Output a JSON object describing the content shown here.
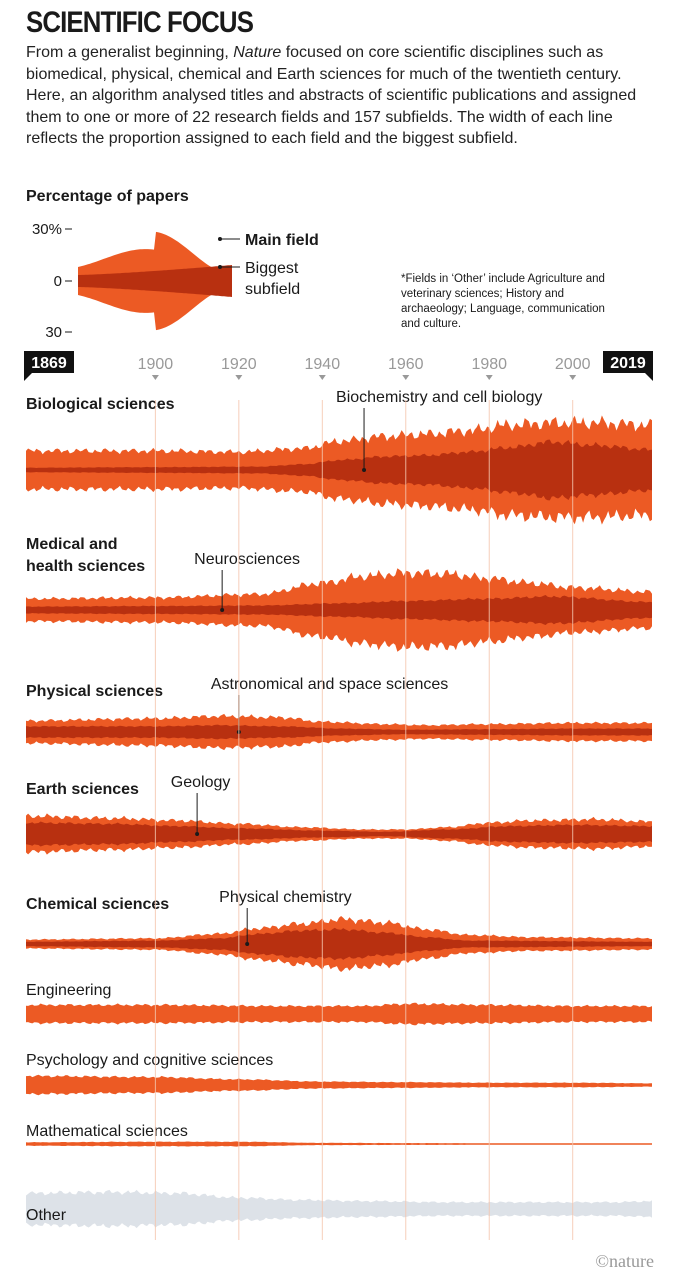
{
  "header": {
    "title": "SCIENTIFIC FOCUS",
    "intro_before": "From a generalist beginning, ",
    "intro_em": "Nature",
    "intro_after": " focused on core scientific disciplines such as biomedical, physical, chemical and Earth sciences for much of the twentieth century. Here, an algorithm analysed titles and abstracts of scientific publications and assigned them to one or more of 22 research fields and 157 subfields. The width of each line reflects the proportion assigned to each field and the biggest subfield."
  },
  "credit": "©nature",
  "colors": {
    "main_field": "#ec5a24",
    "subfield": "#b83010",
    "other": "#dde2e8",
    "gridline": "#f5c6ae",
    "text": "#1a1a1a",
    "tick": "#999999",
    "badge": "#111111"
  },
  "chart_data": {
    "type": "area",
    "subtype": "streamgraph",
    "legend": {
      "title": "Percentage of papers",
      "scale_ticks": [
        "30%",
        "0",
        "30"
      ],
      "main_label": "Main field",
      "sub_label_lines": [
        "Biggest",
        "subfield"
      ],
      "note_lines": [
        "*Fields in ‘Other’ include Agriculture and",
        "veterinary sciences; History and",
        "archaeology; Language, communication",
        "and culture."
      ]
    },
    "x_axis": {
      "start_label": "1869",
      "end_label": "2019",
      "range": [
        1869,
        2019
      ],
      "ticks": [
        1900,
        1920,
        1940,
        1960,
        1980,
        2000
      ],
      "tick_labels": [
        "1900",
        "1920",
        "1940",
        "1960",
        "1980",
        "2000"
      ]
    },
    "series_unit": "percentage of papers (full band width)",
    "series": [
      {
        "name": "Biological sciences",
        "bold": true,
        "subfield": "Biochemistry and cell biology",
        "callout_year": 1950,
        "anchors": [
          [
            1869,
            17
          ],
          [
            1900,
            17
          ],
          [
            1920,
            16
          ],
          [
            1935,
            19
          ],
          [
            1945,
            26
          ],
          [
            1955,
            30
          ],
          [
            1965,
            32
          ],
          [
            1975,
            35
          ],
          [
            1985,
            40
          ],
          [
            1995,
            42
          ],
          [
            2005,
            42
          ],
          [
            2019,
            40
          ]
        ],
        "sub_anchors": [
          [
            1869,
            2
          ],
          [
            1900,
            2.5
          ],
          [
            1925,
            3
          ],
          [
            1935,
            5
          ],
          [
            1945,
            9
          ],
          [
            1955,
            12
          ],
          [
            1965,
            13
          ],
          [
            1975,
            16
          ],
          [
            1985,
            20
          ],
          [
            1995,
            25
          ],
          [
            2005,
            22
          ],
          [
            2019,
            18
          ]
        ]
      },
      {
        "name": "Medical and health sciences",
        "name_lines": [
          "Medical and",
          "health sciences"
        ],
        "bold": true,
        "subfield": "Neurosciences",
        "callout_year": 1916,
        "anchors": [
          [
            1869,
            10
          ],
          [
            1900,
            11
          ],
          [
            1925,
            14
          ],
          [
            1940,
            24
          ],
          [
            1950,
            30
          ],
          [
            1960,
            33
          ],
          [
            1970,
            32
          ],
          [
            1980,
            28
          ],
          [
            1990,
            24
          ],
          [
            2000,
            20
          ],
          [
            2019,
            16
          ]
        ],
        "sub_anchors": [
          [
            1869,
            3
          ],
          [
            1900,
            3.5
          ],
          [
            1925,
            4
          ],
          [
            1945,
            6
          ],
          [
            1960,
            8
          ],
          [
            1980,
            10
          ],
          [
            1995,
            12
          ],
          [
            2019,
            7
          ]
        ]
      },
      {
        "name": "Physical sciences",
        "bold": true,
        "subfield": "Astronomical and space sciences",
        "callout_year": 1920,
        "anchors": [
          [
            1869,
            10
          ],
          [
            1900,
            12
          ],
          [
            1915,
            14
          ],
          [
            1930,
            13
          ],
          [
            1940,
            9
          ],
          [
            1955,
            7
          ],
          [
            1965,
            6
          ],
          [
            1980,
            7
          ],
          [
            2000,
            8
          ],
          [
            2019,
            8
          ]
        ],
        "sub_anchors": [
          [
            1869,
            5
          ],
          [
            1900,
            5
          ],
          [
            1915,
            6
          ],
          [
            1930,
            5
          ],
          [
            1945,
            3
          ],
          [
            1960,
            2
          ],
          [
            1980,
            2.5
          ],
          [
            2000,
            3
          ],
          [
            2019,
            3
          ]
        ]
      },
      {
        "name": "Earth sciences",
        "bold": true,
        "subfield": "Geology",
        "callout_year": 1910,
        "anchors": [
          [
            1869,
            16
          ],
          [
            1890,
            14
          ],
          [
            1905,
            12
          ],
          [
            1920,
            9
          ],
          [
            1935,
            6
          ],
          [
            1950,
            4
          ],
          [
            1960,
            4
          ],
          [
            1970,
            6
          ],
          [
            1980,
            10
          ],
          [
            1990,
            12
          ],
          [
            2005,
            13
          ],
          [
            2019,
            11
          ]
        ],
        "sub_anchors": [
          [
            1869,
            10
          ],
          [
            1890,
            9
          ],
          [
            1905,
            7
          ],
          [
            1920,
            5
          ],
          [
            1940,
            3
          ],
          [
            1955,
            2
          ],
          [
            1970,
            4
          ],
          [
            1985,
            7
          ],
          [
            2000,
            8
          ],
          [
            2019,
            7
          ]
        ]
      },
      {
        "name": "Chemical sciences",
        "bold": true,
        "subfield": "Physical chemistry",
        "callout_year": 1922,
        "anchors": [
          [
            1869,
            4
          ],
          [
            1900,
            5
          ],
          [
            1915,
            9
          ],
          [
            1925,
            14
          ],
          [
            1935,
            18
          ],
          [
            1945,
            22
          ],
          [
            1955,
            19
          ],
          [
            1965,
            13
          ],
          [
            1975,
            8
          ],
          [
            1990,
            6
          ],
          [
            2019,
            5
          ]
        ],
        "sub_anchors": [
          [
            1869,
            2
          ],
          [
            1900,
            3
          ],
          [
            1915,
            5
          ],
          [
            1925,
            9
          ],
          [
            1935,
            12
          ],
          [
            1945,
            13
          ],
          [
            1955,
            10
          ],
          [
            1965,
            6
          ],
          [
            1975,
            3
          ],
          [
            2019,
            2
          ]
        ]
      },
      {
        "name": "Engineering",
        "bold": false,
        "anchors": [
          [
            1869,
            8
          ],
          [
            1900,
            8
          ],
          [
            1930,
            7
          ],
          [
            1950,
            7
          ],
          [
            1960,
            9
          ],
          [
            1980,
            8
          ],
          [
            2000,
            7
          ],
          [
            2019,
            7
          ]
        ]
      },
      {
        "name": "Psychology and cognitive sciences",
        "bold": false,
        "anchors": [
          [
            1869,
            8
          ],
          [
            1900,
            7
          ],
          [
            1920,
            5
          ],
          [
            1940,
            3
          ],
          [
            1960,
            2.5
          ],
          [
            1980,
            2
          ],
          [
            2000,
            2
          ],
          [
            2019,
            1.5
          ]
        ]
      },
      {
        "name": "Mathematical sciences",
        "bold": false,
        "anchors": [
          [
            1869,
            1.5
          ],
          [
            1900,
            2
          ],
          [
            1920,
            2
          ],
          [
            1940,
            1
          ],
          [
            1960,
            0.8
          ],
          [
            1990,
            0.6
          ],
          [
            2019,
            0.5
          ]
        ]
      },
      {
        "name": "Other",
        "bold": false,
        "color": "other",
        "anchors": [
          [
            1869,
            14
          ],
          [
            1890,
            15
          ],
          [
            1905,
            14
          ],
          [
            1920,
            10
          ],
          [
            1935,
            8
          ],
          [
            1950,
            7
          ],
          [
            1970,
            6
          ],
          [
            1990,
            6
          ],
          [
            2010,
            6
          ],
          [
            2019,
            7
          ]
        ]
      }
    ]
  }
}
